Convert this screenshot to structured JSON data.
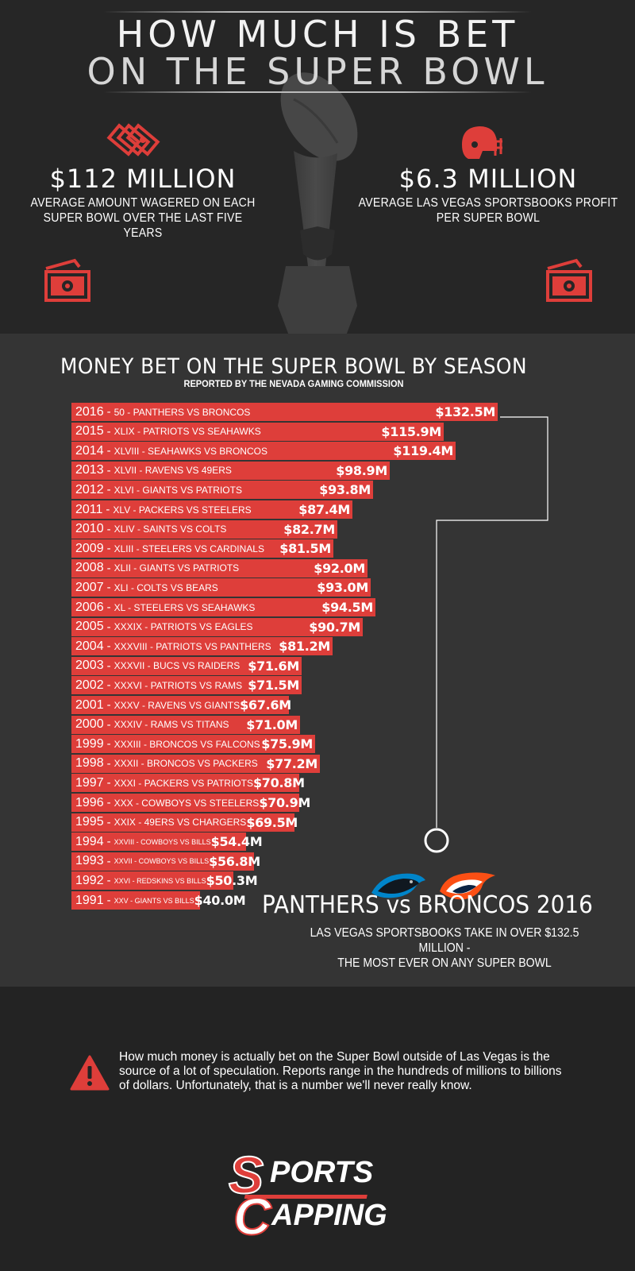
{
  "header": {
    "title_line1": "HOW MUCH IS BET",
    "title_line2": "ON THE SUPER BOWL"
  },
  "stats": [
    {
      "value": "$112 MILLION",
      "description_line1": "AVERAGE AMOUNT WAGERED ON EACH",
      "description_line2": "SUPER BOWL OVER THE LAST FIVE YEARS"
    },
    {
      "value": "$6.3 MILLION",
      "description_line1": "AVERAGE LAS VEGAS SPORTSBOOKS PROFIT",
      "description_line2": "PER SUPER BOWL"
    }
  ],
  "icons": {
    "left_top": "money-stack-icon",
    "right_top": "football-helmet-icon",
    "left_bottom": "money-bill-icon",
    "right_bottom": "money-bill-icon",
    "warning": "warning-triangle-icon"
  },
  "colors": {
    "accent": "#de3e3a",
    "background": "#262626",
    "chart_background": "#343434",
    "text": "#ffffff"
  },
  "chart_data": {
    "type": "bar",
    "orientation": "horizontal",
    "title": "MONEY BET ON THE SUPER BOWL BY SEASON",
    "subtitle": "REPORTED BY THE NEVADA GAMING COMMISSION",
    "unit": "million USD",
    "categories": [
      "2016",
      "2015",
      "2014",
      "2013",
      "2012",
      "2011",
      "2010",
      "2009",
      "2008",
      "2007",
      "2006",
      "2005",
      "2004",
      "2003",
      "2002",
      "2001",
      "2000",
      "1999",
      "1998",
      "1997",
      "1996",
      "1995",
      "1994",
      "1993",
      "1992",
      "1991"
    ],
    "games": [
      "50 - PANTHERS VS BRONCOS",
      "XLIX - PATRIOTS VS SEAHAWKS",
      "XLVIII - SEAHAWKS VS BRONCOS",
      "XLVII - RAVENS VS 49ERS",
      "XLVI - GIANTS VS PATRIOTS",
      "XLV - PACKERS VS STEELERS",
      "XLIV - SAINTS VS COLTS",
      "XLIII - STEELERS VS CARDINALS",
      "XLII - GIANTS VS PATRIOTS",
      "XLI - COLTS VS BEARS",
      "XL - STEELERS VS SEAHAWKS",
      "XXXIX - PATRIOTS VS EAGLES",
      "XXXVIII - PATRIOTS VS PANTHERS",
      "XXXVII - BUCS VS RAIDERS",
      "XXXVI - PATRIOTS VS RAMS",
      "XXXV - RAVENS VS GIANTS",
      "XXXIV - RAMS VS TITANS",
      "XXXIII - BRONCOS VS FALCONS",
      "XXXII - BRONCOS VS PACKERS",
      "XXXI - PACKERS VS PATRIOTS",
      "XXX - COWBOYS VS STEELERS",
      "XXIX - 49ERS VS CHARGERS",
      "XXVIII - COWBOYS VS BILLS",
      "XXVII - COWBOYS VS BILLS",
      "XXVI - REDSKINS VS BILLS",
      "XXV - GIANTS VS BILLS"
    ],
    "values": [
      132.5,
      115.9,
      119.4,
      98.9,
      93.8,
      87.4,
      82.7,
      81.5,
      92.0,
      93.0,
      94.5,
      90.7,
      81.2,
      71.6,
      71.5,
      67.6,
      71.0,
      75.9,
      77.2,
      70.8,
      70.9,
      69.5,
      54.4,
      56.8,
      50.3,
      40.0
    ],
    "value_labels": [
      "$132.5M",
      "$115.9M",
      "$119.4M",
      "$98.9M",
      "$93.8M",
      "$87.4M",
      "$82.7M",
      "$81.5M",
      "$92.0M",
      "$93.0M",
      "$94.5M",
      "$90.7M",
      "$81.2M",
      "$71.6M",
      "$71.5M",
      "$67.6M",
      "$71.0M",
      "$75.9M",
      "$77.2M",
      "$70.8M",
      "$70.9M",
      "$69.5M",
      "$54.4M",
      "$56.8M",
      "$50.3M",
      "$40.0M"
    ],
    "highlight_index": 0,
    "grid": false,
    "legend": "none"
  },
  "callout": {
    "title": "PANTHERS vs BRONCOS 2016",
    "description_line1": "LAS VEGAS SPORTSBOOKS TAKE IN OVER $132.5 MILLION -",
    "description_line2": "THE MOST EVER ON ANY SUPER BOWL",
    "team_logos": [
      "panthers-logo-icon",
      "broncos-logo-icon"
    ]
  },
  "footer": {
    "warning_text": "How much money is actually bet on the Super Bowl outside of Las Vegas is the source of a lot of speculation.  Reports range in the hundreds of millions to billions of dollars.  Unfortunately, that is a number we'll never really know.",
    "logo_word1": "PORTS",
    "logo_word2": "APPING",
    "logo_letter1": "S",
    "logo_letter2": "C"
  }
}
